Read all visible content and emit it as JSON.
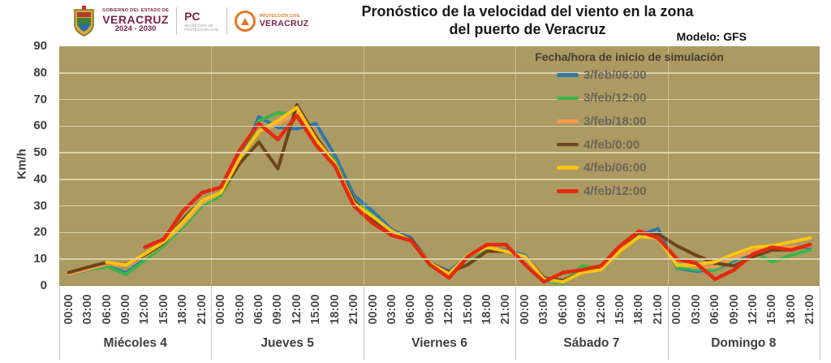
{
  "header": {
    "logo": {
      "gobierno_line1": "GOBIERNO DEL ESTADO DE",
      "gobierno_line2": "VERACRUZ",
      "gobierno_line3": "2024 - 2030",
      "pc_label": "PC",
      "pc_sub1": "SECRETARÍA DE",
      "pc_sub2": "PROTECCIÓN CIVIL",
      "pcv_line1": "PROTECCIÓN CIVIL",
      "pcv_line2": "VERACRUZ"
    },
    "title_line1": "Pronóstico de la velocidad del viento en la zona",
    "title_line2": "del puerto de Veracruz",
    "model_label": "Modelo: GFS"
  },
  "colors": {
    "plot_background": "#ab9a61",
    "gridline": "#d9d1ad",
    "axis_text": "#3f3f3f",
    "legend_text": "#6e655a",
    "institutional_maroon": "#7d2248",
    "emblem_orange": "#e87722"
  },
  "chart_data": {
    "type": "line",
    "title": "Pronóstico de la velocidad del viento en la zona del puerto de Veracruz",
    "ylabel": "Km/h",
    "ylim": [
      0,
      90
    ],
    "yticks": [
      0,
      10,
      20,
      30,
      40,
      50,
      60,
      70,
      80,
      90
    ],
    "grid": true,
    "days": [
      "Miécoles 4",
      "Jueves 5",
      "Viernes 6",
      "Sábado 7",
      "Domingo 8"
    ],
    "times": [
      "00:00",
      "03:00",
      "06:00",
      "09:00",
      "12:00",
      "15:00",
      "18:00",
      "21:00"
    ],
    "legend_title": "Fecha/hora de inicio de simulación",
    "legend_position": "top-right-inside",
    "series": [
      {
        "name": "3/feb/06:00",
        "color": "#2e77ab",
        "start": 0,
        "values": [
          4.2,
          6.2,
          7.5,
          4.8,
          10,
          15.5,
          24,
          31,
          34.5,
          47,
          63.5,
          59.5,
          59,
          61,
          49,
          34,
          28,
          21,
          18,
          8.5,
          5.5,
          11,
          14,
          13.5,
          11.5,
          2.5,
          1.5,
          5,
          6,
          13,
          19,
          21.5,
          6.7,
          5.5,
          6,
          9.5,
          12.5,
          14,
          14.5,
          14.5
        ]
      },
      {
        "name": "3/feb/12:00",
        "color": "#3bb54a",
        "start": 0,
        "values": [
          4,
          6,
          7.2,
          4.3,
          9.5,
          15,
          22,
          30,
          34,
          46,
          62,
          65,
          64.5,
          55,
          47,
          32,
          26.5,
          20,
          17,
          7.5,
          5,
          10.5,
          14,
          13,
          11,
          2,
          1,
          7.5,
          6.5,
          13,
          19,
          19,
          7,
          6,
          6,
          10,
          13,
          9,
          11.5,
          13.5
        ]
      },
      {
        "name": "3/feb/18:00",
        "color": "#f79a55",
        "start": 0,
        "values": [
          4.3,
          6.3,
          8.2,
          7.8,
          11,
          16,
          23,
          31,
          35,
          48,
          58,
          61,
          65,
          54,
          46,
          31,
          25,
          20,
          17,
          8,
          4.5,
          11,
          14.5,
          13,
          11,
          2.5,
          2,
          5,
          6.5,
          13.5,
          19,
          18.5,
          8,
          7,
          7,
          10.5,
          13,
          14,
          14.5,
          15
        ]
      },
      {
        "name": "4/feb/0:00",
        "color": "#6f431c",
        "start": 0,
        "values": [
          5,
          7,
          8.8,
          8,
          11.5,
          16,
          25,
          32,
          35,
          46,
          54,
          44,
          68,
          56,
          46,
          32,
          25,
          20,
          17.5,
          8.5,
          5,
          8,
          13,
          13,
          11,
          3,
          2,
          5,
          7,
          13,
          19,
          19.5,
          15,
          11.5,
          8.5,
          7.5,
          11,
          13.5,
          13.5,
          15.5
        ]
      },
      {
        "name": "4/feb/06:00",
        "color": "#fcc411",
        "start": 2,
        "values": [
          8.9,
          7.8,
          12,
          16.5,
          24,
          32,
          35,
          48,
          58,
          62,
          67,
          55,
          46,
          31,
          26,
          20.5,
          17,
          8.5,
          4.5,
          11.5,
          14.5,
          13,
          11,
          2.5,
          1.5,
          5,
          6,
          13,
          18.5,
          18,
          7.7,
          8,
          9,
          12,
          14.5,
          15,
          16.5,
          18
        ]
      },
      {
        "name": "4/feb/12:00",
        "color": "#e32a0f",
        "start": 4,
        "values": [
          14.5,
          17.5,
          28,
          35,
          37,
          51,
          61,
          55,
          64,
          53,
          45,
          30,
          23.5,
          19,
          17,
          8,
          3,
          11,
          15.5,
          15.5,
          8,
          1.5,
          5,
          6,
          7.5,
          15,
          20.5,
          18,
          10,
          8.5,
          2.5,
          6,
          12,
          14.5,
          13.5,
          15.5
        ]
      }
    ]
  }
}
